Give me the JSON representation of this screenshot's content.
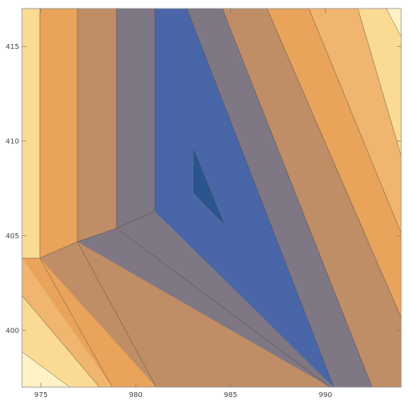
{
  "chart_data": {
    "type": "contour",
    "title": "",
    "xlabel": "",
    "ylabel": "",
    "xlim": [
      974,
      994
    ],
    "ylim": [
      397,
      417
    ],
    "grid": false,
    "legend": "none",
    "x_ticks": [
      975,
      980,
      985,
      990
    ],
    "y_ticks": [
      400,
      405,
      410,
      415
    ],
    "x_tick_labels": [
      "975",
      "980",
      "985",
      "990"
    ],
    "y_tick_labels": [
      "400",
      "405",
      "410",
      "415"
    ],
    "colormap": [
      "#FFF2C4",
      "#FBDB94",
      "#F0B56E",
      "#E9A35B",
      "#BF8D66",
      "#7F7783",
      "#4866A8",
      "#2A558E"
    ],
    "contours": [
      {
        "level": 1,
        "boundary": [
          [
            974,
            396.9
          ],
          [
            983,
            407.1
          ],
          [
            983,
            409.5
          ],
          [
            974,
            406.2
          ]
        ]
      },
      {
        "level": 2,
        "boundary": [
          [
            974,
            397.25
          ],
          [
            990.2,
            396.9
          ],
          [
            994,
            396.9
          ],
          [
            994,
            406.2
          ],
          [
            983,
            409.5
          ],
          [
            976,
            406.8
          ],
          [
            974,
            405.5
          ]
        ]
      },
      {
        "level": 3,
        "boundary": [
          [
            979,
            396.9
          ],
          [
            980.6,
            396.9
          ],
          [
            981.9,
            406.3
          ],
          [
            981.9,
            417.1
          ],
          [
            979.5,
            417.1
          ],
          [
            979.5,
            404.5
          ],
          [
            974,
            399
          ]
        ]
      }
    ],
    "bands": [
      {
        "level": 0,
        "fill": "#4866A8",
        "polygon": [
          [
            981,
            417.1
          ],
          [
            984.6,
            417.1
          ],
          [
            990.5,
            396.9
          ],
          [
            989.2,
            396.9
          ],
          [
            981,
            406.3
          ]
        ]
      },
      {
        "level": 1,
        "fill": "#2A558E",
        "polygon": [
          [
            983,
            409.5
          ],
          [
            984.6,
            405.6
          ],
          [
            983,
            407.2
          ]
        ]
      }
    ]
  }
}
